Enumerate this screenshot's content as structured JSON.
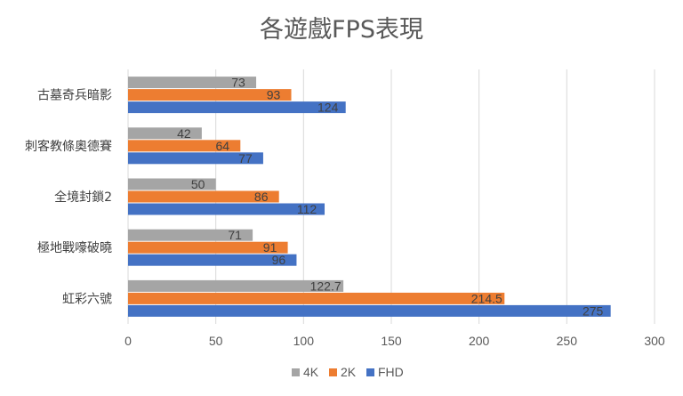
{
  "chart_data": {
    "type": "bar",
    "orientation": "horizontal",
    "title": "各遊戲FPS表現",
    "categories": [
      "古墓奇兵暗影",
      "刺客教條奧德賽",
      "全境封鎖2",
      "極地戰嚎破曉",
      "虹彩六號"
    ],
    "series": [
      {
        "name": "4K",
        "color": "#a5a5a5",
        "values": [
          73,
          42,
          50,
          71,
          122.7
        ],
        "labels": [
          "73",
          "42",
          "50",
          "71",
          "122.7"
        ]
      },
      {
        "name": "2K",
        "color": "#ed7d31",
        "values": [
          93,
          64,
          86,
          91,
          214.5
        ],
        "labels": [
          "93",
          "64",
          "86",
          "91",
          "214.5"
        ]
      },
      {
        "name": "FHD",
        "color": "#4472c4",
        "values": [
          124,
          77,
          112,
          96,
          275
        ],
        "labels": [
          "124",
          "77",
          "112",
          "96",
          "275"
        ]
      }
    ],
    "xlim": [
      0,
      300
    ],
    "xticks": [
      "0",
      "50",
      "100",
      "150",
      "200",
      "250",
      "300"
    ],
    "grid": true,
    "legend_position": "bottom"
  }
}
